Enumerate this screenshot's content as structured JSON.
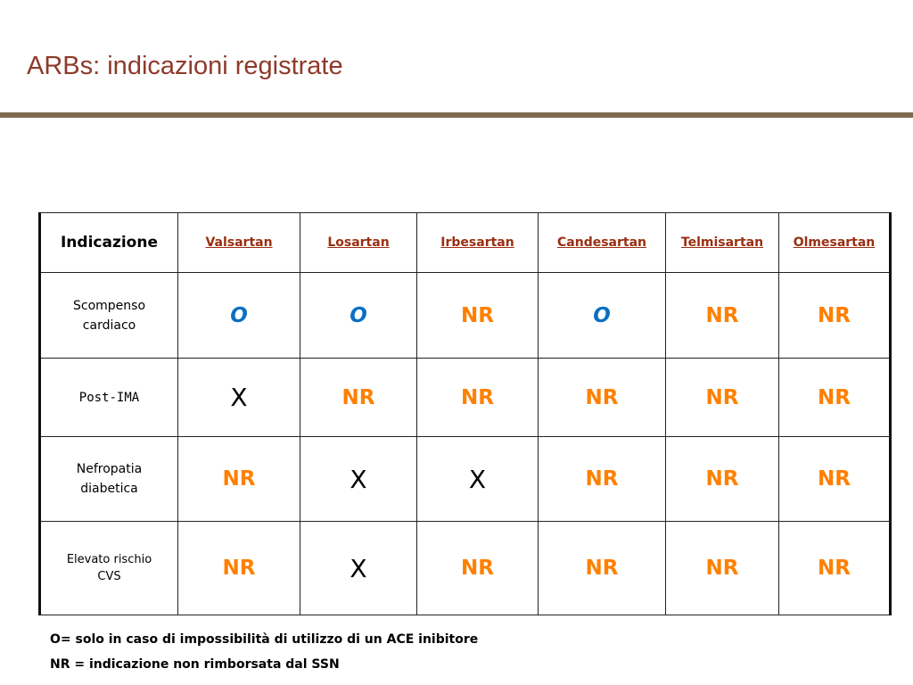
{
  "header": {
    "title": "ARBs: indicazioni registrate"
  },
  "table": {
    "columns": [
      "Indicazione",
      "Valsartan",
      "Losartan",
      "Irbesartan",
      "Candesartan",
      "Telmisartan",
      "Olmesartan"
    ],
    "rows": [
      [
        "Scompenso cardiaco",
        "O",
        "O",
        "NR",
        "O",
        "NR",
        "NR"
      ],
      [
        "Post-IMA",
        "X",
        "NR",
        "NR",
        "NR",
        "NR",
        "NR"
      ],
      [
        "Nefropatia diabetica",
        "NR",
        "X",
        "X",
        "NR",
        "NR",
        "NR"
      ],
      [
        "Elevato rischio CVS",
        "NR",
        "X",
        "NR",
        "NR",
        "NR",
        "NR"
      ]
    ]
  },
  "notes": [
    "O= solo in caso di impossibilità di utilizzo di un ACE inibitore",
    "NR = indicazione non rimborsata dal SSN"
  ]
}
